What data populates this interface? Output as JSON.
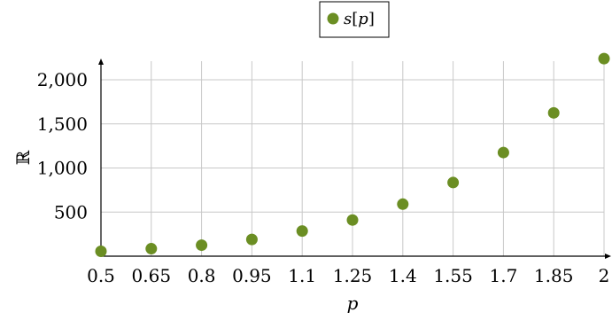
{
  "chart_data": {
    "type": "scatter",
    "series": [
      {
        "name_parts": [
          "s",
          "[",
          "p",
          "]"
        ],
        "name": "s[p]",
        "x": [
          0.5,
          0.65,
          0.8,
          0.95,
          1.1,
          1.25,
          1.4,
          1.55,
          1.7,
          1.85,
          2.0
        ],
        "y": [
          55,
          85,
          125,
          190,
          285,
          410,
          590,
          835,
          1175,
          1625,
          2240
        ]
      }
    ],
    "xlabel": "p",
    "ylabel": "ℝ",
    "xlim": [
      0.5,
      2.0
    ],
    "ylim": [
      0,
      2350
    ],
    "x_ticks": [
      0.5,
      0.65,
      0.8,
      0.95,
      1.1,
      1.25,
      1.4,
      1.55,
      1.7,
      1.85,
      2.0
    ],
    "x_tick_labels": [
      "0.5",
      "0.65",
      "0.8",
      "0.95",
      "1.1",
      "1.25",
      "1.4",
      "1.55",
      "1.7",
      "1.85",
      "2"
    ],
    "y_ticks": [
      500,
      1000,
      1500,
      2000
    ],
    "y_tick_labels": [
      "500",
      "1,000",
      "1,500",
      "2,000"
    ],
    "grid": true,
    "legend_position": "top-center",
    "colors": {
      "marker": "#6b8e23",
      "grid": "#c8c8c8",
      "axis": "#000000"
    }
  }
}
